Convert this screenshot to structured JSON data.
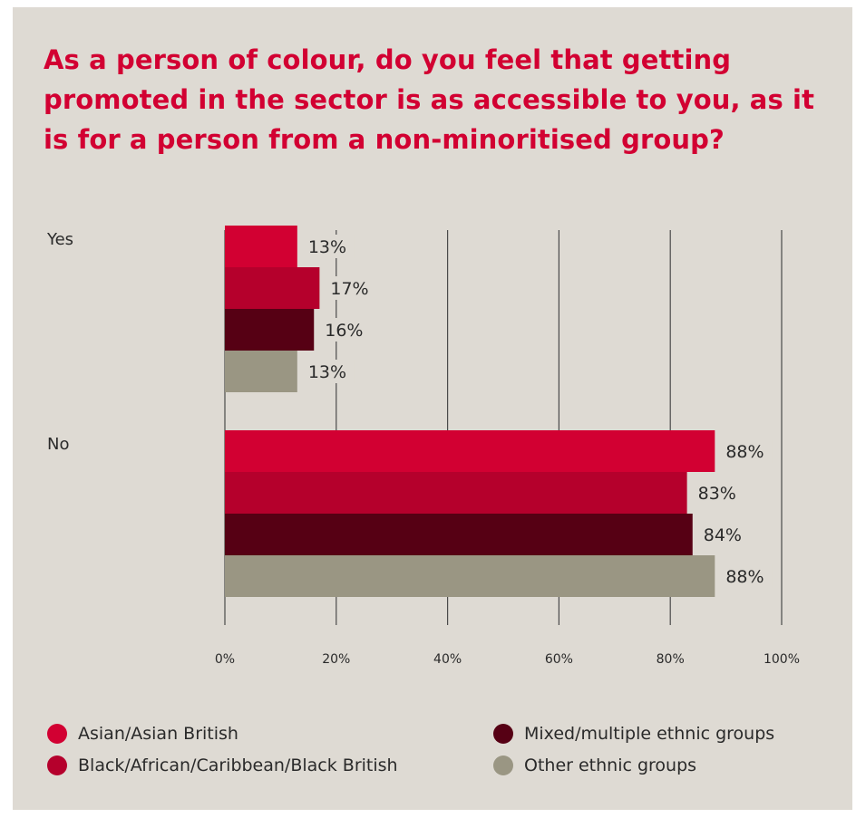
{
  "chart_data": {
    "type": "bar",
    "orientation": "horizontal",
    "title": "As a person of colour, do you feel that getting promoted in the sector is as accessible to you, as it is for a person from a non-minoritised group?",
    "categories": [
      "Yes",
      "No"
    ],
    "series": [
      {
        "name": "Asian/Asian British",
        "color": "#d20032",
        "values": [
          13,
          88
        ]
      },
      {
        "name": "Black/African/Caribbean/Black British",
        "color": "#b5002c",
        "values": [
          17,
          83
        ]
      },
      {
        "name": "Mixed/multiple ethnic groups",
        "color": "#560014",
        "values": [
          16,
          84
        ]
      },
      {
        "name": "Other ethnic groups",
        "color": "#9a9683",
        "values": [
          13,
          88
        ]
      }
    ],
    "data_labels": [
      [
        "13%",
        "88%"
      ],
      [
        "17%",
        "83%"
      ],
      [
        "16%",
        "84%"
      ],
      [
        "13%",
        "88%"
      ]
    ],
    "xlim": [
      0,
      100
    ],
    "x_ticks": [
      0,
      20,
      40,
      60,
      80,
      100
    ],
    "x_tick_labels": [
      "0%",
      "20%",
      "40%",
      "60%",
      "80%",
      "100%"
    ],
    "grid": true,
    "legend_position": "bottom"
  }
}
